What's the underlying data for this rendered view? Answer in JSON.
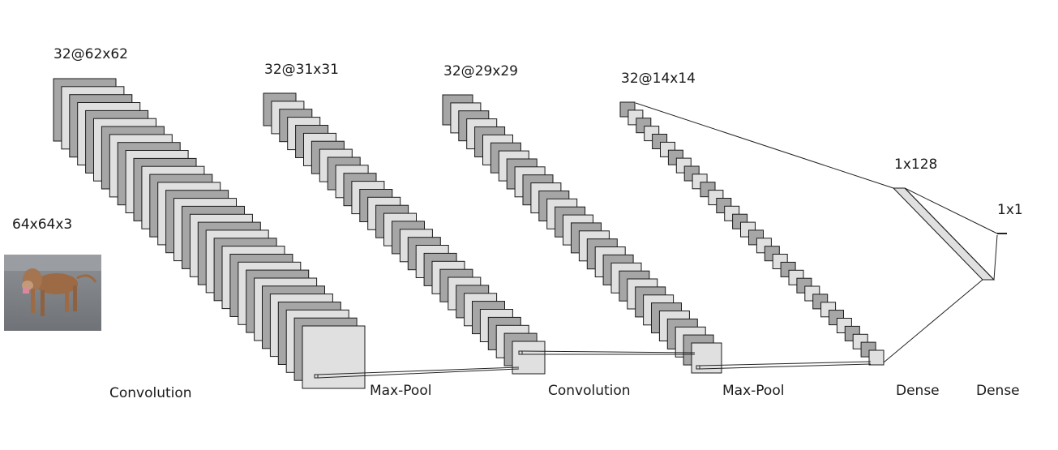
{
  "input": {
    "dims": "64x64x3",
    "image_description": "dog photo"
  },
  "layers": [
    {
      "id": "conv1",
      "dims": "32@62x62"
    },
    {
      "id": "pool1",
      "dims": "32@31x31"
    },
    {
      "id": "conv2",
      "dims": "32@29x29"
    },
    {
      "id": "pool2",
      "dims": "32@14x14"
    },
    {
      "id": "dense1",
      "dims": "1x128"
    },
    {
      "id": "dense2",
      "dims": "1x1"
    }
  ],
  "operations": [
    "Convolution",
    "Max-Pool",
    "Convolution",
    "Max-Pool",
    "Dense",
    "Dense"
  ],
  "colors": {
    "dark": "#a6a6a6",
    "light": "#e0e0e0",
    "stroke": "#1a1a1a"
  }
}
